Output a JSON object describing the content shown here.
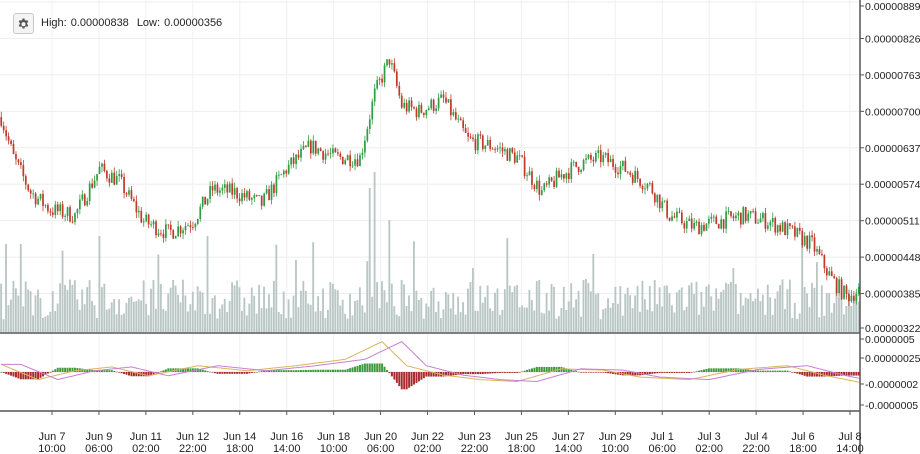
{
  "header": {
    "high_label": "High:",
    "high_value": "0.00000838",
    "low_label": "Low:",
    "low_value": "0.00000356",
    "settings_icon": "gear-icon"
  },
  "colors": {
    "up": "#2e9e45",
    "down": "#c0392b",
    "volume": "#b8c6c4",
    "macd_line": "#d9b45a",
    "signal_line": "#c77fd1",
    "hist_up": "#3c9a3c",
    "hist_down": "#a82a2a"
  },
  "chart_data": {
    "type": "candlestick",
    "price_axis": {
      "ticks": [
        "0.00000889",
        "0.00000826",
        "0.00000763",
        "0.00000700",
        "0.00000637",
        "0.00000574",
        "0.00000511",
        "0.00000448",
        "0.00000385",
        "0.00000322"
      ],
      "range": [
        3.22e-06,
        8.89e-06
      ]
    },
    "macd_axis": {
      "ticks": [
        "0.0000005",
        "0.00000025",
        "-0.0000002",
        "-0.0000005"
      ]
    },
    "x_labels": [
      [
        "Jun 7",
        "10:00"
      ],
      [
        "Jun 9",
        "06:00"
      ],
      [
        "Jun 11",
        "02:00"
      ],
      [
        "Jun 12",
        "22:00"
      ],
      [
        "Jun 14",
        "18:00"
      ],
      [
        "Jun 16",
        "14:00"
      ],
      [
        "Jun 18",
        "10:00"
      ],
      [
        "Jun 20",
        "06:00"
      ],
      [
        "Jun 22",
        "02:00"
      ],
      [
        "Jun 23",
        "22:00"
      ],
      [
        "Jun 25",
        "18:00"
      ],
      [
        "Jun 27",
        "14:00"
      ],
      [
        "Jun 29",
        "10:00"
      ],
      [
        "Jul 1",
        "06:00"
      ],
      [
        "Jul 3",
        "02:00"
      ],
      [
        "Jul 4",
        "22:00"
      ],
      [
        "Jul 6",
        "18:00"
      ],
      [
        "Jul 8",
        "14:00"
      ]
    ],
    "price_keypoints": [
      [
        0,
        6.9e-06
      ],
      [
        5,
        6.2e-06
      ],
      [
        12,
        5.6e-06
      ],
      [
        20,
        5.3e-06
      ],
      [
        30,
        5.2e-06
      ],
      [
        40,
        6e-06
      ],
      [
        48,
        5.8e-06
      ],
      [
        58,
        5.1e-06
      ],
      [
        68,
        4.9e-06
      ],
      [
        78,
        5.1e-06
      ],
      [
        86,
        5.65e-06
      ],
      [
        95,
        5.6e-06
      ],
      [
        106,
        5.4e-06
      ],
      [
        116,
        6e-06
      ],
      [
        126,
        6.4e-06
      ],
      [
        136,
        6.2e-06
      ],
      [
        146,
        6.2e-06
      ],
      [
        152,
        7.3e-06
      ],
      [
        158,
        7.9e-06
      ],
      [
        163,
        7.1e-06
      ],
      [
        170,
        7e-06
      ],
      [
        180,
        7.2e-06
      ],
      [
        190,
        6.5e-06
      ],
      [
        200,
        6.4e-06
      ],
      [
        210,
        6.2e-06
      ],
      [
        220,
        5.6e-06
      ],
      [
        228,
        5.9e-06
      ],
      [
        236,
        6.1e-06
      ],
      [
        244,
        6.2e-06
      ],
      [
        254,
        6e-06
      ],
      [
        264,
        5.7e-06
      ],
      [
        272,
        5.2e-06
      ],
      [
        282,
        5e-06
      ],
      [
        292,
        5.1e-06
      ],
      [
        302,
        5.2e-06
      ],
      [
        312,
        5.1e-06
      ],
      [
        322,
        4.9e-06
      ],
      [
        330,
        4.7e-06
      ],
      [
        338,
        4.1e-06
      ],
      [
        344,
        3.8e-06
      ],
      [
        349,
        3.9e-06
      ]
    ],
    "volume_spikes": [
      [
        2,
        0.55
      ],
      [
        8,
        0.55
      ],
      [
        40,
        0.6
      ],
      [
        84,
        0.6
      ],
      [
        120,
        0.45
      ],
      [
        150,
        0.9
      ],
      [
        152,
        1.0
      ],
      [
        158,
        0.7
      ],
      [
        192,
        0.4
      ],
      [
        224,
        0.3
      ],
      [
        296,
        0.3
      ]
    ],
    "macd_keypoints": [
      [
        0,
        1.2e-07
      ],
      [
        15,
        -1.2e-07
      ],
      [
        30,
        2e-08
      ],
      [
        45,
        8e-08
      ],
      [
        60,
        -6e-08
      ],
      [
        80,
        1e-07
      ],
      [
        100,
        2e-08
      ],
      [
        120,
        1e-07
      ],
      [
        140,
        2e-07
      ],
      [
        155,
        4.8e-07
      ],
      [
        165,
        1e-07
      ],
      [
        180,
        -5e-08
      ],
      [
        195,
        -1.2e-07
      ],
      [
        210,
        -1.5e-07
      ],
      [
        228,
        5e-08
      ],
      [
        245,
        3e-08
      ],
      [
        260,
        -8e-08
      ],
      [
        280,
        -1.2e-07
      ],
      [
        300,
        4e-08
      ],
      [
        320,
        1e-07
      ],
      [
        335,
        -5e-08
      ],
      [
        349,
        -1.6e-07
      ]
    ],
    "macd_range": [
      -6e-07,
      6e-07
    ],
    "candle_count": 350
  }
}
